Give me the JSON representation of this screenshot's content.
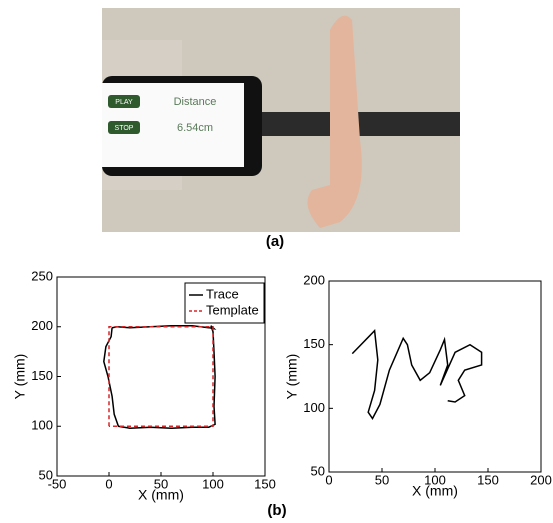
{
  "photo": {
    "buttons": [
      "PLAY",
      "STOP"
    ],
    "label": "Distance",
    "reading": "6.54cm"
  },
  "captions": {
    "a": "(a)",
    "b": "(b)"
  },
  "chart_data": [
    {
      "type": "line",
      "xlabel": "X (mm)",
      "ylabel": "Y (mm)",
      "xlim": [
        -50,
        150
      ],
      "ylim": [
        50,
        250
      ],
      "xticks": [
        -50,
        0,
        50,
        100,
        150
      ],
      "yticks": [
        50,
        100,
        150,
        200,
        250
      ],
      "legend": "upper right",
      "series": [
        {
          "name": "Trace",
          "color": "#000000",
          "linestyle": "solid",
          "x": [
            3,
            2,
            -3,
            -5,
            -1,
            3,
            5,
            9,
            20,
            40,
            60,
            80,
            96,
            102,
            101,
            102,
            101,
            100,
            98,
            101,
            96,
            80,
            60,
            40,
            20,
            8,
            3
          ],
          "values": [
            199,
            190,
            180,
            165,
            150,
            130,
            112,
            100,
            98,
            99,
            98,
            99,
            99,
            102,
            120,
            150,
            175,
            195,
            201,
            198,
            199,
            201,
            201,
            200,
            199,
            200,
            199
          ]
        },
        {
          "name": "Template",
          "color": "#d62728",
          "linestyle": "dashed",
          "x": [
            0,
            0,
            100,
            100,
            0
          ],
          "values": [
            100,
            200,
            200,
            100,
            100
          ]
        }
      ]
    },
    {
      "type": "line",
      "xlabel": "X (mm)",
      "ylabel": "Y (mm)",
      "xlim": [
        0,
        200
      ],
      "ylim": [
        50,
        200
      ],
      "xticks": [
        0,
        50,
        100,
        150,
        200
      ],
      "yticks": [
        50,
        100,
        150,
        200
      ],
      "series": [
        {
          "color": "#000000",
          "linestyle": "solid",
          "x": [
            22,
            43,
            46,
            43,
            37,
            41,
            48,
            57,
            70,
            74,
            78,
            86,
            95,
            105,
            109,
            112,
            105,
            119,
            133,
            144,
            144,
            128,
            122,
            128,
            119,
            112
          ],
          "values": [
            143,
            161,
            138,
            114,
            97,
            92,
            103,
            130,
            155,
            150,
            134,
            122,
            128,
            146,
            154,
            134,
            118,
            144,
            150,
            144,
            134,
            130,
            122,
            110,
            105,
            106
          ]
        }
      ]
    }
  ]
}
